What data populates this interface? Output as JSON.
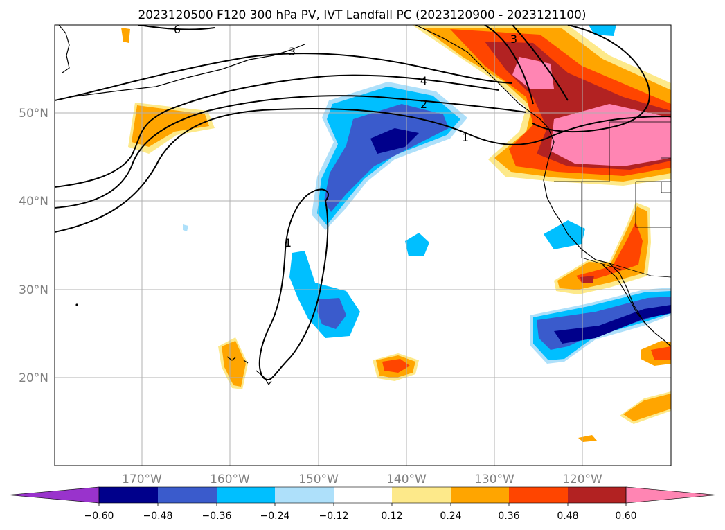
{
  "title": "2023120500 F120 300 hPa PV, IVT Landfall PC (2023120900 - 2023121100)",
  "map": {
    "lon_range": [
      -180,
      -110
    ],
    "lat_range": [
      10,
      60
    ],
    "lat_gridlines": [
      20,
      30,
      40,
      50
    ],
    "lon_gridlines": [
      -170,
      -160,
      -150,
      -140,
      -130,
      -120
    ],
    "lat_tick_labels": [
      "20°N",
      "30°N",
      "40°N",
      "50°N"
    ],
    "lon_tick_labels": [
      "170°W",
      "160°W",
      "150°W",
      "140°W",
      "130°W",
      "120°W"
    ]
  },
  "pv_contours": [
    {
      "label": "1"
    },
    {
      "label": "1"
    },
    {
      "label": "2"
    },
    {
      "label": "3"
    },
    {
      "label": "3"
    },
    {
      "label": "4"
    },
    {
      "label": "6"
    }
  ],
  "colorbar": {
    "ticks": [
      "−0.60",
      "−0.48",
      "−0.36",
      "−0.24",
      "−0.12",
      "0.12",
      "0.24",
      "0.36",
      "0.48",
      "0.60"
    ],
    "colors": [
      "#9933cc",
      "#00008b",
      "#3a5bcc",
      "#00bfff",
      "#aee0fa",
      "#ffffff",
      "#fde98a",
      "#ffa500",
      "#ff4500",
      "#b22222",
      "#ff85b3"
    ]
  }
}
